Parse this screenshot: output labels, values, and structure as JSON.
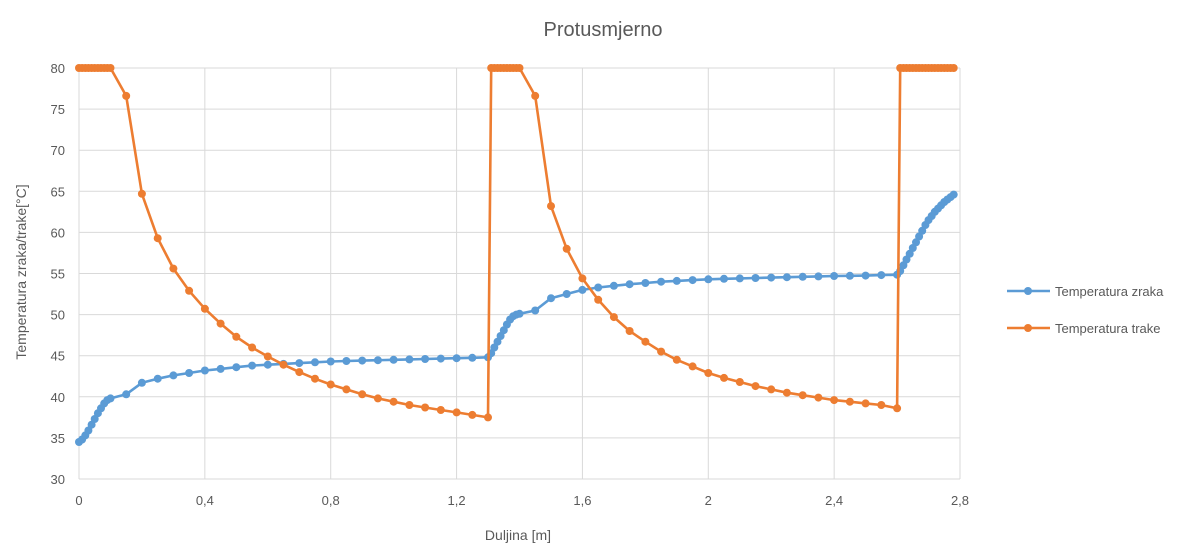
{
  "chart_data": {
    "type": "line",
    "title": "Protusmjerno",
    "xlabel": "Duljina [m]",
    "ylabel": "Temperatura zraka/trake[°C]",
    "xlim": [
      0,
      2.8
    ],
    "ylim": [
      30,
      80
    ],
    "x_ticks": [
      "0",
      "0,4",
      "0,8",
      "1,2",
      "1,6",
      "2",
      "2,4",
      "2,8"
    ],
    "x_tick_values": [
      0,
      0.4,
      0.8,
      1.2,
      1.6,
      2.0,
      2.4,
      2.8
    ],
    "y_ticks": [
      "30",
      "35",
      "40",
      "45",
      "50",
      "55",
      "60",
      "65",
      "70",
      "75",
      "80"
    ],
    "y_tick_values": [
      30,
      35,
      40,
      45,
      50,
      55,
      60,
      65,
      70,
      75,
      80
    ],
    "grid": true,
    "legend_position": "right",
    "series": [
      {
        "name": "Temperatura zraka",
        "color": "#5b9bd5",
        "points": [
          [
            0,
            34.5
          ],
          [
            0.01,
            34.8
          ],
          [
            0.02,
            35.3
          ],
          [
            0.03,
            35.9
          ],
          [
            0.04,
            36.6
          ],
          [
            0.05,
            37.3
          ],
          [
            0.06,
            38.0
          ],
          [
            0.07,
            38.6
          ],
          [
            0.08,
            39.2
          ],
          [
            0.09,
            39.6
          ],
          [
            0.1,
            39.8
          ],
          [
            0.15,
            40.3
          ],
          [
            0.2,
            41.7
          ],
          [
            0.25,
            42.2
          ],
          [
            0.3,
            42.6
          ],
          [
            0.35,
            42.9
          ],
          [
            0.4,
            43.2
          ],
          [
            0.45,
            43.4
          ],
          [
            0.5,
            43.6
          ],
          [
            0.55,
            43.8
          ],
          [
            0.6,
            43.9
          ],
          [
            0.65,
            44.0
          ],
          [
            0.7,
            44.1
          ],
          [
            0.75,
            44.2
          ],
          [
            0.8,
            44.3
          ],
          [
            0.85,
            44.35
          ],
          [
            0.9,
            44.4
          ],
          [
            0.95,
            44.45
          ],
          [
            1.0,
            44.5
          ],
          [
            1.05,
            44.55
          ],
          [
            1.1,
            44.6
          ],
          [
            1.15,
            44.65
          ],
          [
            1.2,
            44.7
          ],
          [
            1.25,
            44.75
          ],
          [
            1.3,
            44.8
          ],
          [
            1.31,
            45.3
          ],
          [
            1.32,
            46.0
          ],
          [
            1.33,
            46.7
          ],
          [
            1.34,
            47.4
          ],
          [
            1.35,
            48.1
          ],
          [
            1.36,
            48.8
          ],
          [
            1.37,
            49.4
          ],
          [
            1.38,
            49.8
          ],
          [
            1.39,
            50.0
          ],
          [
            1.4,
            50.1
          ],
          [
            1.45,
            50.5
          ],
          [
            1.5,
            52.0
          ],
          [
            1.55,
            52.5
          ],
          [
            1.6,
            53.0
          ],
          [
            1.65,
            53.3
          ],
          [
            1.7,
            53.5
          ],
          [
            1.75,
            53.7
          ],
          [
            1.8,
            53.85
          ],
          [
            1.85,
            54.0
          ],
          [
            1.9,
            54.1
          ],
          [
            1.95,
            54.2
          ],
          [
            2.0,
            54.3
          ],
          [
            2.05,
            54.35
          ],
          [
            2.1,
            54.4
          ],
          [
            2.15,
            54.45
          ],
          [
            2.2,
            54.5
          ],
          [
            2.25,
            54.55
          ],
          [
            2.3,
            54.6
          ],
          [
            2.35,
            54.65
          ],
          [
            2.4,
            54.7
          ],
          [
            2.45,
            54.72
          ],
          [
            2.5,
            54.75
          ],
          [
            2.55,
            54.8
          ],
          [
            2.6,
            54.85
          ],
          [
            2.61,
            55.3
          ],
          [
            2.62,
            56.0
          ],
          [
            2.63,
            56.7
          ],
          [
            2.64,
            57.4
          ],
          [
            2.65,
            58.1
          ],
          [
            2.66,
            58.8
          ],
          [
            2.67,
            59.5
          ],
          [
            2.68,
            60.2
          ],
          [
            2.69,
            60.9
          ],
          [
            2.7,
            61.5
          ],
          [
            2.71,
            62.0
          ],
          [
            2.72,
            62.5
          ],
          [
            2.73,
            62.9
          ],
          [
            2.74,
            63.3
          ],
          [
            2.75,
            63.7
          ],
          [
            2.76,
            64.0
          ],
          [
            2.77,
            64.3
          ],
          [
            2.78,
            64.6
          ]
        ]
      },
      {
        "name": "Temperatura trake",
        "color": "#ed7d31",
        "points": [
          [
            0,
            80
          ],
          [
            0.01,
            80
          ],
          [
            0.02,
            80
          ],
          [
            0.03,
            80
          ],
          [
            0.04,
            80
          ],
          [
            0.05,
            80
          ],
          [
            0.06,
            80
          ],
          [
            0.07,
            80
          ],
          [
            0.08,
            80
          ],
          [
            0.09,
            80
          ],
          [
            0.1,
            80
          ],
          [
            0.15,
            76.6
          ],
          [
            0.2,
            64.7
          ],
          [
            0.25,
            59.3
          ],
          [
            0.3,
            55.6
          ],
          [
            0.35,
            52.9
          ],
          [
            0.4,
            50.7
          ],
          [
            0.45,
            48.9
          ],
          [
            0.5,
            47.3
          ],
          [
            0.55,
            46.0
          ],
          [
            0.6,
            44.9
          ],
          [
            0.65,
            43.9
          ],
          [
            0.7,
            43.0
          ],
          [
            0.75,
            42.2
          ],
          [
            0.8,
            41.5
          ],
          [
            0.85,
            40.9
          ],
          [
            0.9,
            40.3
          ],
          [
            0.95,
            39.8
          ],
          [
            1.0,
            39.4
          ],
          [
            1.05,
            39.0
          ],
          [
            1.1,
            38.7
          ],
          [
            1.15,
            38.4
          ],
          [
            1.2,
            38.1
          ],
          [
            1.25,
            37.8
          ],
          [
            1.3,
            37.5
          ],
          [
            1.31,
            80
          ],
          [
            1.32,
            80
          ],
          [
            1.33,
            80
          ],
          [
            1.34,
            80
          ],
          [
            1.35,
            80
          ],
          [
            1.36,
            80
          ],
          [
            1.37,
            80
          ],
          [
            1.38,
            80
          ],
          [
            1.39,
            80
          ],
          [
            1.4,
            80
          ],
          [
            1.45,
            76.6
          ],
          [
            1.5,
            63.2
          ],
          [
            1.55,
            58.0
          ],
          [
            1.6,
            54.4
          ],
          [
            1.65,
            51.8
          ],
          [
            1.7,
            49.7
          ],
          [
            1.75,
            48.0
          ],
          [
            1.8,
            46.7
          ],
          [
            1.85,
            45.5
          ],
          [
            1.9,
            44.5
          ],
          [
            1.95,
            43.7
          ],
          [
            2.0,
            42.9
          ],
          [
            2.05,
            42.3
          ],
          [
            2.1,
            41.8
          ],
          [
            2.15,
            41.3
          ],
          [
            2.2,
            40.9
          ],
          [
            2.25,
            40.5
          ],
          [
            2.3,
            40.2
          ],
          [
            2.35,
            39.9
          ],
          [
            2.4,
            39.6
          ],
          [
            2.45,
            39.4
          ],
          [
            2.5,
            39.2
          ],
          [
            2.55,
            39.0
          ],
          [
            2.6,
            38.6
          ],
          [
            2.61,
            80
          ],
          [
            2.62,
            80
          ],
          [
            2.63,
            80
          ],
          [
            2.64,
            80
          ],
          [
            2.65,
            80
          ],
          [
            2.66,
            80
          ],
          [
            2.67,
            80
          ],
          [
            2.68,
            80
          ],
          [
            2.69,
            80
          ],
          [
            2.7,
            80
          ],
          [
            2.71,
            80
          ],
          [
            2.72,
            80
          ],
          [
            2.73,
            80
          ],
          [
            2.74,
            80
          ],
          [
            2.75,
            80
          ],
          [
            2.76,
            80
          ],
          [
            2.77,
            80
          ],
          [
            2.78,
            80
          ]
        ]
      }
    ]
  }
}
